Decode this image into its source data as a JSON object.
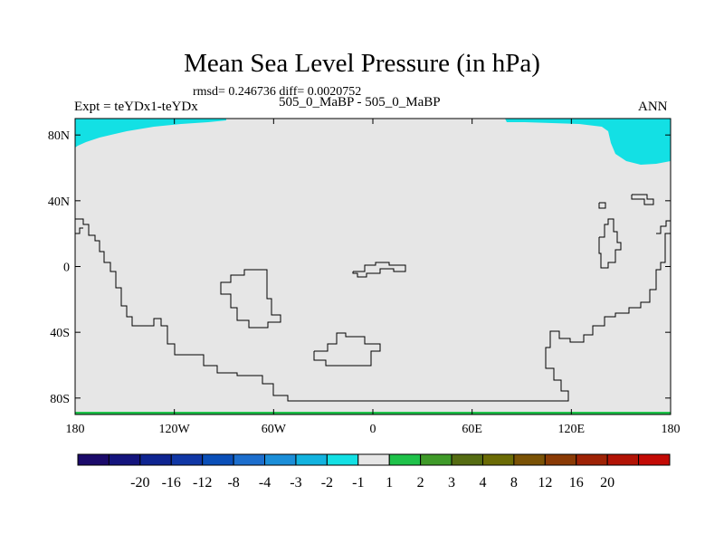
{
  "figure": {
    "title": "Mean Sea Level Pressure (in hPa)",
    "stats": "rmsd= 0.246736 diff= 0.0020752",
    "left_label": "Expt = teYDx1-teYDx",
    "center_label": "505_0_MaBP - 505_0_MaBP",
    "right_label": "ANN"
  },
  "axes": {
    "lat_ticks": [
      {
        "value": 80,
        "label": "80N"
      },
      {
        "value": 40,
        "label": "40N"
      },
      {
        "value": 0,
        "label": "0"
      },
      {
        "value": -40,
        "label": "40S"
      },
      {
        "value": -80,
        "label": "80S"
      }
    ],
    "lon_ticks": [
      {
        "value": -180,
        "label": "180"
      },
      {
        "value": -120,
        "label": "120W"
      },
      {
        "value": -60,
        "label": "60W"
      },
      {
        "value": 0,
        "label": "0"
      },
      {
        "value": 60,
        "label": "60E"
      },
      {
        "value": 120,
        "label": "120E"
      },
      {
        "value": 180,
        "label": "180"
      }
    ],
    "lon_range": [
      -180,
      180
    ],
    "lat_range": [
      -90,
      90
    ]
  },
  "colorbar": {
    "colors": [
      "#1b0a6a",
      "#14147d",
      "#0f2591",
      "#1037a5",
      "#0a4fb8",
      "#1c6ecd",
      "#1b8ed8",
      "#12b3df",
      "#13e0e4",
      "#e6e6e6",
      "#1fc24a",
      "#3f9a29",
      "#556c12",
      "#6b6b05",
      "#7a5205",
      "#8a3a05",
      "#9e2205",
      "#b21305",
      "#c30a05"
    ],
    "labels": [
      "-20",
      "-16",
      "-12",
      "-8",
      "-4",
      "-3",
      "-2",
      "-1",
      "1",
      "2",
      "3",
      "4",
      "8",
      "12",
      "16",
      "20"
    ]
  },
  "colors": {
    "background_field": "#e6e6e6",
    "negative_fill": "#13e0e4",
    "positive_fill": "#1fc24a",
    "coastline": "#000000"
  }
}
